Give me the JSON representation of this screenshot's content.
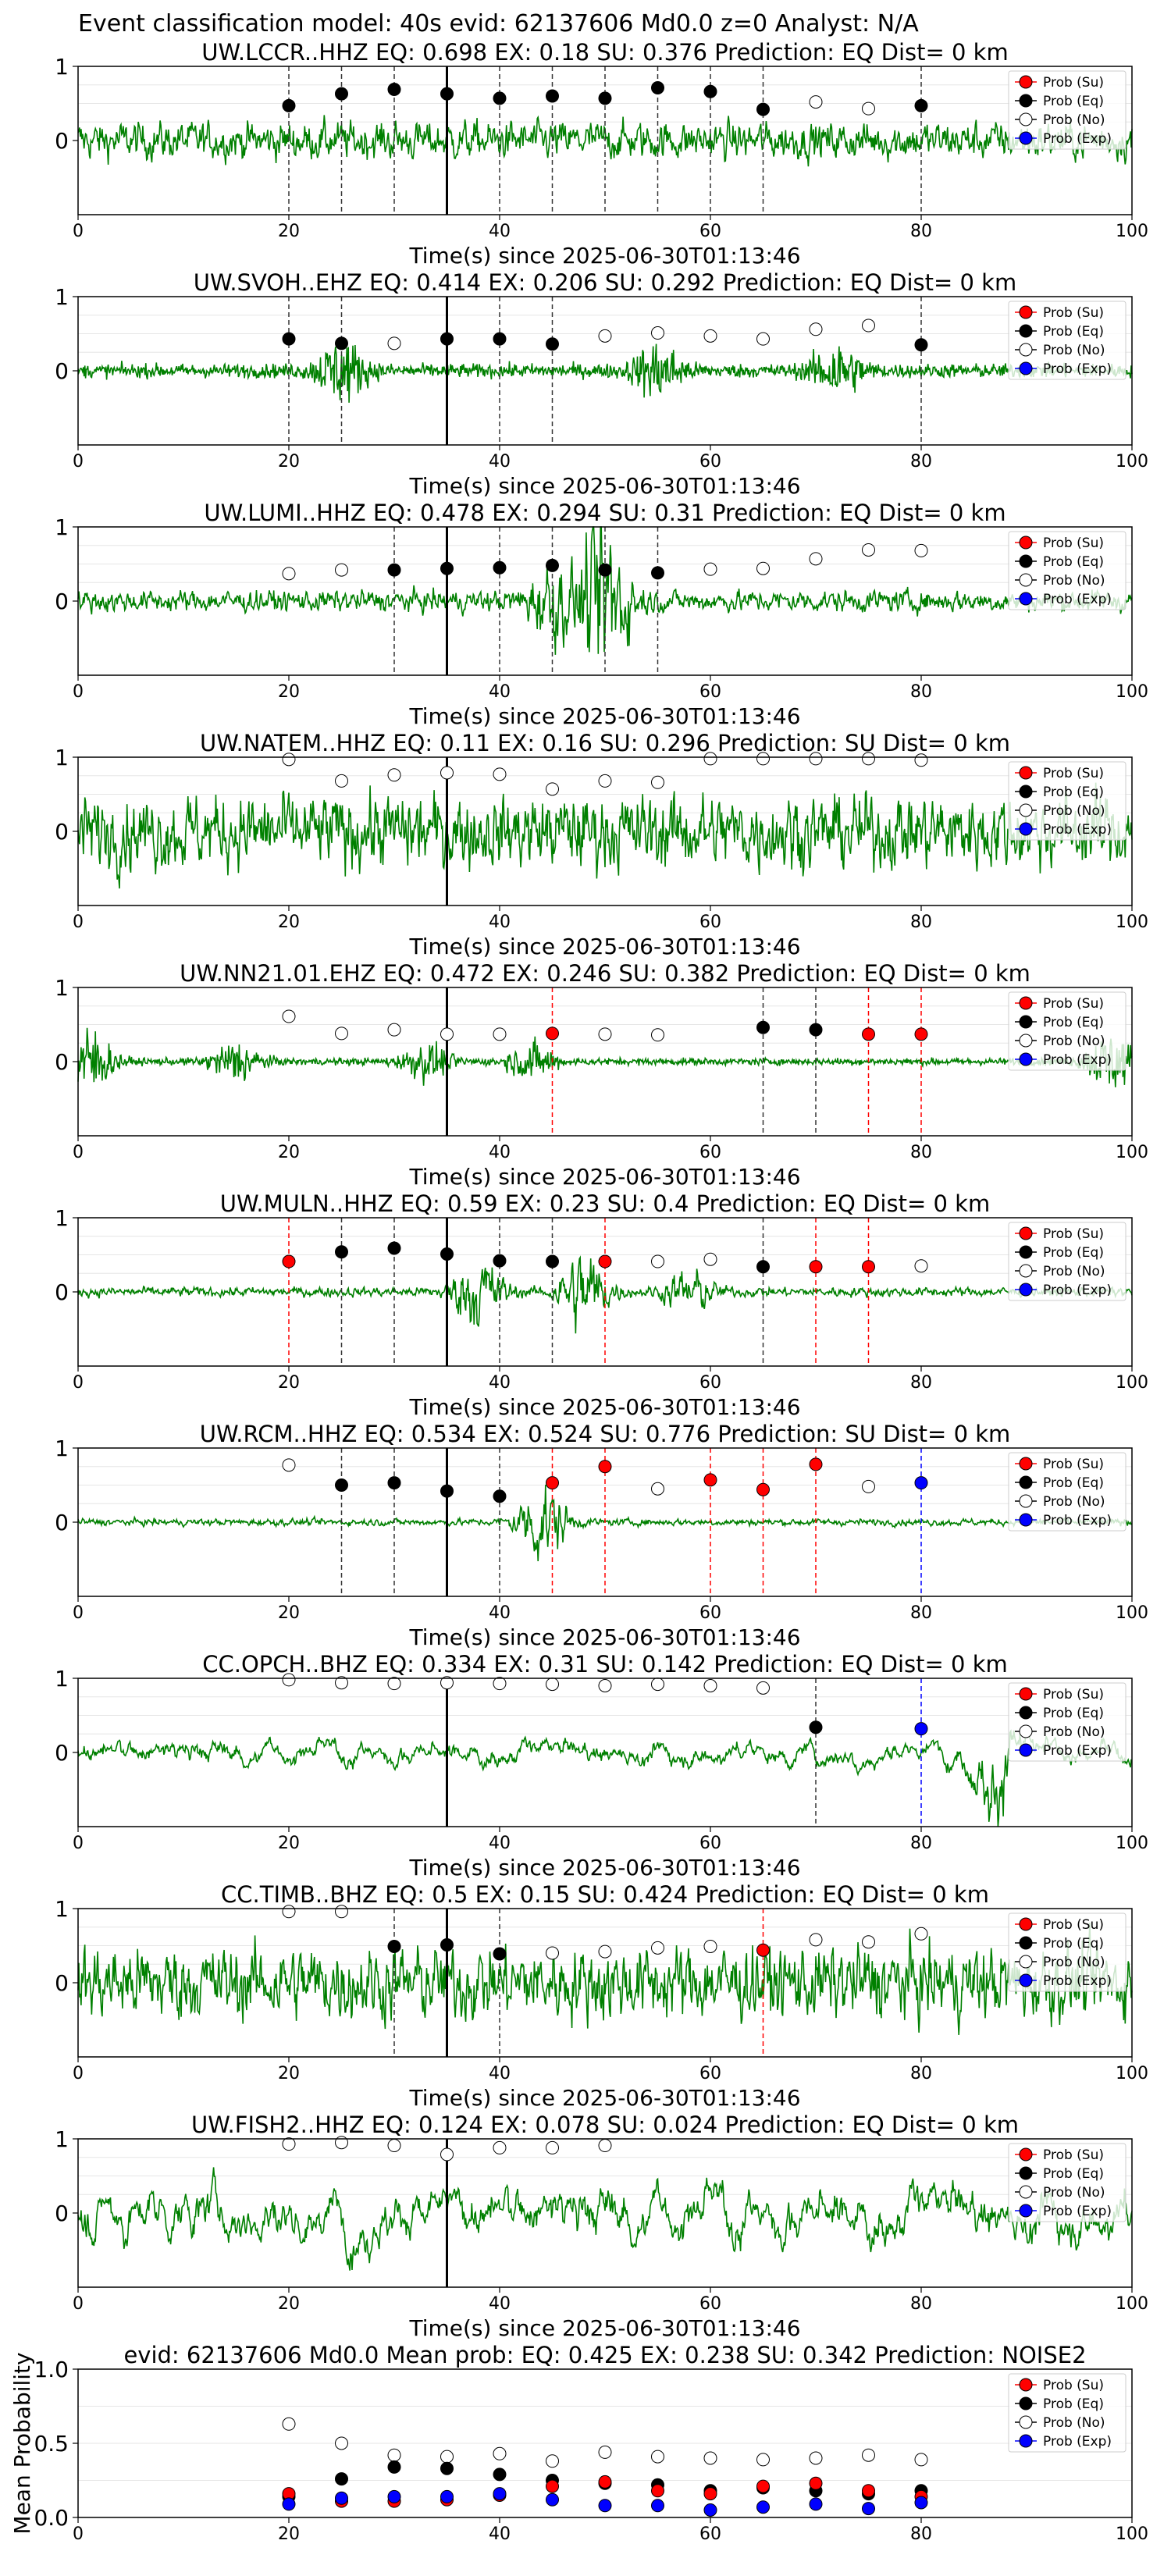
{
  "figure_title": "Event classification model: 40s evid: 62137606 Md0.0 z=0 Analyst: N/A",
  "x_label": "Time(s) since 2025-06-30T01:13:46",
  "mean_ylabel": "Mean Probability",
  "legend_labels": [
    "Prob (Su)",
    "Prob (Eq)",
    "Prob (No)",
    "Prob (Exp)"
  ],
  "colors": {
    "waveform": "#008000",
    "su": "#ff0000",
    "eq": "#000000",
    "no": "#ffffff",
    "exp": "#0000ff",
    "origin_line": "#000000"
  },
  "chart_data": [
    {
      "type": "line",
      "title": "UW.LCCR..HHZ   EQ: 0.698  EX: 0.18  SU: 0.376   Prediction: EQ    Dist= 0 km",
      "xlim": [
        0,
        100
      ],
      "ylim": [
        -1,
        1
      ],
      "xticks": [
        0,
        20,
        40,
        60,
        80,
        100
      ],
      "yticks": [
        0,
        1
      ],
      "origin_time": 35,
      "noise_amp": 0.28,
      "noise_style": "mid",
      "bursts": [],
      "times": [
        20,
        25,
        30,
        35,
        40,
        45,
        50,
        55,
        60,
        65,
        70,
        75,
        80
      ],
      "points": [
        [
          "eq",
          0.47
        ],
        [
          "eq",
          0.63
        ],
        [
          "eq",
          0.69
        ],
        [
          "eq",
          0.63
        ],
        [
          "eq",
          0.57
        ],
        [
          "eq",
          0.6
        ],
        [
          "eq",
          0.57
        ],
        [
          "eq",
          0.71
        ],
        [
          "eq",
          0.66
        ],
        [
          "eq",
          0.42
        ],
        [
          "no",
          0.52
        ],
        [
          "no",
          0.43
        ],
        [
          "eq",
          0.47
        ]
      ],
      "vlines": [
        [
          20,
          "eq"
        ],
        [
          25,
          "eq"
        ],
        [
          30,
          "eq"
        ],
        [
          40,
          "eq"
        ],
        [
          45,
          "eq"
        ],
        [
          50,
          "eq"
        ],
        [
          55,
          "eq"
        ],
        [
          60,
          "eq"
        ],
        [
          65,
          "eq"
        ],
        [
          80,
          "eq"
        ]
      ]
    },
    {
      "type": "line",
      "title": "UW.SVOH..EHZ   EQ: 0.414  EX: 0.206  SU: 0.292   Prediction: EQ    Dist= 0 km",
      "xlim": [
        0,
        100
      ],
      "ylim": [
        -1,
        1
      ],
      "xticks": [
        0,
        20,
        40,
        60,
        80,
        100
      ],
      "yticks": [
        0,
        1
      ],
      "origin_time": 35,
      "noise_amp": 0.12,
      "noise_style": "high",
      "bursts": [
        [
          25,
          0.5
        ],
        [
          55,
          0.45
        ],
        [
          72,
          0.45
        ]
      ],
      "times": [
        20,
        25,
        30,
        35,
        40,
        45,
        50,
        55,
        60,
        65,
        70,
        75,
        80
      ],
      "points": [
        [
          "eq",
          0.43
        ],
        [
          "eq",
          0.37
        ],
        [
          "no",
          0.37
        ],
        [
          "eq",
          0.43
        ],
        [
          "eq",
          0.43
        ],
        [
          "eq",
          0.36
        ],
        [
          "no",
          0.47
        ],
        [
          "no",
          0.51
        ],
        [
          "no",
          0.47
        ],
        [
          "no",
          0.43
        ],
        [
          "no",
          0.56
        ],
        [
          "no",
          0.61
        ],
        [
          "eq",
          0.35
        ]
      ],
      "vlines": [
        [
          20,
          "eq"
        ],
        [
          25,
          "eq"
        ],
        [
          40,
          "eq"
        ],
        [
          45,
          "eq"
        ],
        [
          80,
          "eq"
        ]
      ]
    },
    {
      "type": "line",
      "title": "UW.LUMI..HHZ   EQ: 0.478  EX: 0.294  SU: 0.31   Prediction: EQ    Dist= 0 km",
      "xlim": [
        0,
        100
      ],
      "ylim": [
        -1,
        1
      ],
      "xticks": [
        0,
        20,
        40,
        60,
        80,
        100
      ],
      "yticks": [
        0,
        1
      ],
      "origin_time": 35,
      "noise_amp": 0.16,
      "noise_style": "mid",
      "bursts": [
        [
          50,
          1.3
        ],
        [
          45,
          0.5
        ]
      ],
      "times": [
        20,
        25,
        30,
        35,
        40,
        45,
        50,
        55,
        60,
        65,
        70,
        75,
        80
      ],
      "points": [
        [
          "no",
          0.37
        ],
        [
          "no",
          0.42
        ],
        [
          "eq",
          0.42
        ],
        [
          "eq",
          0.44
        ],
        [
          "eq",
          0.45
        ],
        [
          "eq",
          0.48
        ],
        [
          "eq",
          0.42
        ],
        [
          "eq",
          0.38
        ],
        [
          "no",
          0.43
        ],
        [
          "no",
          0.44
        ],
        [
          "no",
          0.57
        ],
        [
          "no",
          0.69
        ],
        [
          "no",
          0.68
        ]
      ],
      "vlines": [
        [
          30,
          "eq"
        ],
        [
          40,
          "eq"
        ],
        [
          45,
          "eq"
        ],
        [
          50,
          "eq"
        ],
        [
          55,
          "eq"
        ]
      ]
    },
    {
      "type": "line",
      "title": "UW.NATEM..HHZ   EQ: 0.11  EX: 0.16  SU: 0.296   Prediction: SU    Dist= 0 km",
      "xlim": [
        0,
        100
      ],
      "ylim": [
        -1,
        1
      ],
      "xticks": [
        0,
        20,
        40,
        60,
        80,
        100
      ],
      "yticks": [
        0,
        1
      ],
      "origin_time": 35,
      "noise_amp": 0.55,
      "noise_style": "mid",
      "bursts": [],
      "times": [
        20,
        25,
        30,
        35,
        40,
        45,
        50,
        55,
        60,
        65,
        70,
        75,
        80
      ],
      "points": [
        [
          "no",
          0.97
        ],
        [
          "no",
          0.68
        ],
        [
          "no",
          0.76
        ],
        [
          "no",
          0.79
        ],
        [
          "no",
          0.77
        ],
        [
          "no",
          0.57
        ],
        [
          "no",
          0.68
        ],
        [
          "no",
          0.66
        ],
        [
          "no",
          0.98
        ],
        [
          "no",
          0.98
        ],
        [
          "no",
          0.98
        ],
        [
          "no",
          0.98
        ],
        [
          "no",
          0.96
        ]
      ],
      "vlines": []
    },
    {
      "type": "line",
      "title": "UW.NN21.01.EHZ   EQ: 0.472  EX: 0.246  SU: 0.382   Prediction: EQ    Dist= 0 km",
      "xlim": [
        0,
        100
      ],
      "ylim": [
        -1,
        1
      ],
      "xticks": [
        0,
        20,
        40,
        60,
        80,
        100
      ],
      "yticks": [
        0,
        1
      ],
      "origin_time": 35,
      "noise_amp": 0.06,
      "noise_style": "high",
      "bursts": [
        [
          1,
          0.6
        ],
        [
          15,
          0.35
        ],
        [
          33,
          0.3
        ],
        [
          43,
          0.3
        ],
        [
          98,
          0.5
        ]
      ],
      "times": [
        20,
        25,
        30,
        35,
        40,
        45,
        50,
        55,
        60,
        65,
        70,
        75,
        80
      ],
      "points": [
        [
          "no",
          0.61
        ],
        [
          "no",
          0.38
        ],
        [
          "no",
          0.43
        ],
        [
          "no",
          0.37
        ],
        [
          "no",
          0.37
        ],
        [
          "su",
          0.38
        ],
        [
          "no",
          0.37
        ],
        [
          "no",
          0.36
        ],
        null,
        [
          "eq",
          0.46
        ],
        [
          "eq",
          0.43
        ],
        [
          "su",
          0.37
        ],
        [
          "su",
          0.37
        ]
      ],
      "vlines": [
        [
          45,
          "su"
        ],
        [
          65,
          "eq"
        ],
        [
          70,
          "eq"
        ],
        [
          75,
          "su"
        ],
        [
          80,
          "su"
        ]
      ]
    },
    {
      "type": "line",
      "title": "UW.MULN..HHZ   EQ: 0.59  EX: 0.23  SU: 0.4   Prediction: EQ    Dist= 0 km",
      "xlim": [
        0,
        100
      ],
      "ylim": [
        -1,
        1
      ],
      "xticks": [
        0,
        20,
        40,
        60,
        80,
        100
      ],
      "yticks": [
        0,
        1
      ],
      "origin_time": 35,
      "noise_amp": 0.07,
      "noise_style": "mid",
      "bursts": [
        [
          38,
          0.55
        ],
        [
          48,
          0.6
        ],
        [
          58,
          0.3
        ]
      ],
      "times": [
        20,
        25,
        30,
        35,
        40,
        45,
        50,
        55,
        60,
        65,
        70,
        75,
        80
      ],
      "points": [
        [
          "su",
          0.41
        ],
        [
          "eq",
          0.54
        ],
        [
          "eq",
          0.59
        ],
        [
          "eq",
          0.51
        ],
        [
          "eq",
          0.42
        ],
        [
          "eq",
          0.41
        ],
        [
          "su",
          0.41
        ],
        [
          "no",
          0.41
        ],
        [
          "no",
          0.44
        ],
        [
          "eq",
          0.34
        ],
        [
          "su",
          0.34
        ],
        [
          "su",
          0.34
        ],
        [
          "no",
          0.35
        ]
      ],
      "vlines": [
        [
          20,
          "su"
        ],
        [
          25,
          "eq"
        ],
        [
          30,
          "eq"
        ],
        [
          40,
          "eq"
        ],
        [
          45,
          "eq"
        ],
        [
          50,
          "su"
        ],
        [
          65,
          "eq"
        ],
        [
          70,
          "su"
        ],
        [
          75,
          "su"
        ]
      ]
    },
    {
      "type": "line",
      "title": "UW.RCM..HHZ   EQ: 0.534  EX: 0.524  SU: 0.776   Prediction: SU    Dist= 0 km",
      "xlim": [
        0,
        100
      ],
      "ylim": [
        -1,
        1
      ],
      "xticks": [
        0,
        20,
        40,
        60,
        80,
        100
      ],
      "yticks": [
        0,
        1
      ],
      "origin_time": 35,
      "noise_amp": 0.05,
      "noise_style": "mid",
      "bursts": [
        [
          44,
          0.6
        ]
      ],
      "times": [
        20,
        25,
        30,
        35,
        40,
        45,
        50,
        55,
        60,
        65,
        70,
        75,
        80
      ],
      "points": [
        [
          "no",
          0.77
        ],
        [
          "eq",
          0.5
        ],
        [
          "eq",
          0.53
        ],
        [
          "eq",
          0.42
        ],
        [
          "eq",
          0.35
        ],
        [
          "su",
          0.53
        ],
        [
          "su",
          0.75
        ],
        [
          "no",
          0.45
        ],
        [
          "su",
          0.57
        ],
        [
          "su",
          0.44
        ],
        [
          "su",
          0.78
        ],
        [
          "no",
          0.48
        ],
        [
          "exp",
          0.53
        ]
      ],
      "vlines": [
        [
          25,
          "eq"
        ],
        [
          30,
          "eq"
        ],
        [
          40,
          "eq"
        ],
        [
          45,
          "su"
        ],
        [
          50,
          "su"
        ],
        [
          60,
          "su"
        ],
        [
          65,
          "su"
        ],
        [
          70,
          "su"
        ],
        [
          80,
          "exp"
        ]
      ]
    },
    {
      "type": "line",
      "title": "CC.OPCH..BHZ   EQ: 0.334  EX: 0.31  SU: 0.142   Prediction: EQ    Dist= 0 km",
      "xlim": [
        0,
        100
      ],
      "ylim": [
        -1,
        1
      ],
      "xticks": [
        0,
        20,
        40,
        60,
        80,
        100
      ],
      "yticks": [
        0,
        1
      ],
      "origin_time": 35,
      "noise_amp": 0.22,
      "noise_style": "low",
      "bursts": [
        [
          87,
          0.8
        ]
      ],
      "times": [
        20,
        25,
        30,
        35,
        40,
        45,
        50,
        55,
        60,
        65,
        70,
        75,
        80
      ],
      "points": [
        [
          "no",
          0.98
        ],
        [
          "no",
          0.94
        ],
        [
          "no",
          0.93
        ],
        [
          "no",
          0.94
        ],
        [
          "no",
          0.93
        ],
        [
          "no",
          0.92
        ],
        [
          "no",
          0.9
        ],
        [
          "no",
          0.92
        ],
        [
          "no",
          0.9
        ],
        [
          "no",
          0.87
        ],
        [
          "eq",
          0.34
        ],
        null,
        [
          "exp",
          0.32
        ]
      ],
      "vlines": [
        [
          70,
          "eq"
        ],
        [
          80,
          "exp"
        ]
      ]
    },
    {
      "type": "line",
      "title": "CC.TIMB..BHZ   EQ: 0.5  EX: 0.15  SU: 0.424   Prediction: EQ    Dist= 0 km",
      "xlim": [
        0,
        100
      ],
      "ylim": [
        -1,
        1
      ],
      "xticks": [
        0,
        20,
        40,
        60,
        80,
        100
      ],
      "yticks": [
        0,
        1
      ],
      "origin_time": 35,
      "noise_amp": 0.55,
      "noise_style": "mid",
      "bursts": [],
      "times": [
        20,
        25,
        30,
        35,
        40,
        45,
        50,
        55,
        60,
        65,
        70,
        75,
        80
      ],
      "points": [
        [
          "no",
          0.96
        ],
        [
          "no",
          0.96
        ],
        [
          "eq",
          0.49
        ],
        [
          "eq",
          0.51
        ],
        [
          "eq",
          0.39
        ],
        [
          "no",
          0.4
        ],
        [
          "no",
          0.42
        ],
        [
          "no",
          0.47
        ],
        [
          "no",
          0.49
        ],
        [
          "su",
          0.44
        ],
        [
          "no",
          0.58
        ],
        [
          "no",
          0.55
        ],
        [
          "no",
          0.66
        ]
      ],
      "vlines": [
        [
          30,
          "eq"
        ],
        [
          40,
          "eq"
        ],
        [
          65,
          "su"
        ]
      ]
    },
    {
      "type": "line",
      "title": "UW.FISH2..HHZ   EQ: 0.124  EX: 0.078  SU: 0.024   Prediction: EQ    Dist= 0 km",
      "xlim": [
        0,
        100
      ],
      "ylim": [
        -1,
        1
      ],
      "xticks": [
        0,
        20,
        40,
        60,
        80,
        100
      ],
      "yticks": [
        0,
        1
      ],
      "origin_time": 35,
      "noise_amp": 0.5,
      "noise_style": "low",
      "bursts": [],
      "times": [
        20,
        25,
        30,
        35,
        40,
        45,
        50,
        55,
        60,
        65,
        70,
        75,
        80
      ],
      "points": [
        [
          "no",
          0.93
        ],
        [
          "no",
          0.95
        ],
        [
          "no",
          0.91
        ],
        [
          "no",
          0.79
        ],
        [
          "no",
          0.88
        ],
        [
          "no",
          0.88
        ],
        [
          "no",
          0.91
        ],
        null,
        null,
        null,
        null,
        null,
        null
      ],
      "vlines": []
    },
    {
      "type": "scatter",
      "title": "evid: 62137606  Md0.0   Mean prob:   EQ: 0.425  EX: 0.238  SU: 0.342   Prediction: NOISE2",
      "xlim": [
        0,
        100
      ],
      "ylim": [
        0,
        1
      ],
      "xticks": [
        0,
        20,
        40,
        60,
        80,
        100
      ],
      "yticks": [
        0.0,
        0.5,
        1.0
      ],
      "times": [
        20,
        25,
        30,
        35,
        40,
        45,
        50,
        55,
        60,
        65,
        70,
        75,
        80
      ],
      "series": [
        {
          "name": "Prob (No)",
          "key": "no",
          "values": [
            0.63,
            0.5,
            0.42,
            0.41,
            0.43,
            0.38,
            0.44,
            0.41,
            0.4,
            0.39,
            0.4,
            0.42,
            0.39
          ]
        },
        {
          "name": "Prob (Eq)",
          "key": "eq",
          "values": [
            0.14,
            0.26,
            0.34,
            0.33,
            0.29,
            0.25,
            0.23,
            0.22,
            0.18,
            0.2,
            0.18,
            0.16,
            0.18
          ]
        },
        {
          "name": "Prob (Su)",
          "key": "su",
          "values": [
            0.16,
            0.11,
            0.11,
            0.12,
            0.15,
            0.21,
            0.24,
            0.18,
            0.16,
            0.21,
            0.23,
            0.18,
            0.14
          ]
        },
        {
          "name": "Prob (Exp)",
          "key": "exp",
          "values": [
            0.09,
            0.13,
            0.14,
            0.14,
            0.16,
            0.12,
            0.08,
            0.08,
            0.05,
            0.07,
            0.09,
            0.06,
            0.1
          ]
        }
      ]
    }
  ]
}
